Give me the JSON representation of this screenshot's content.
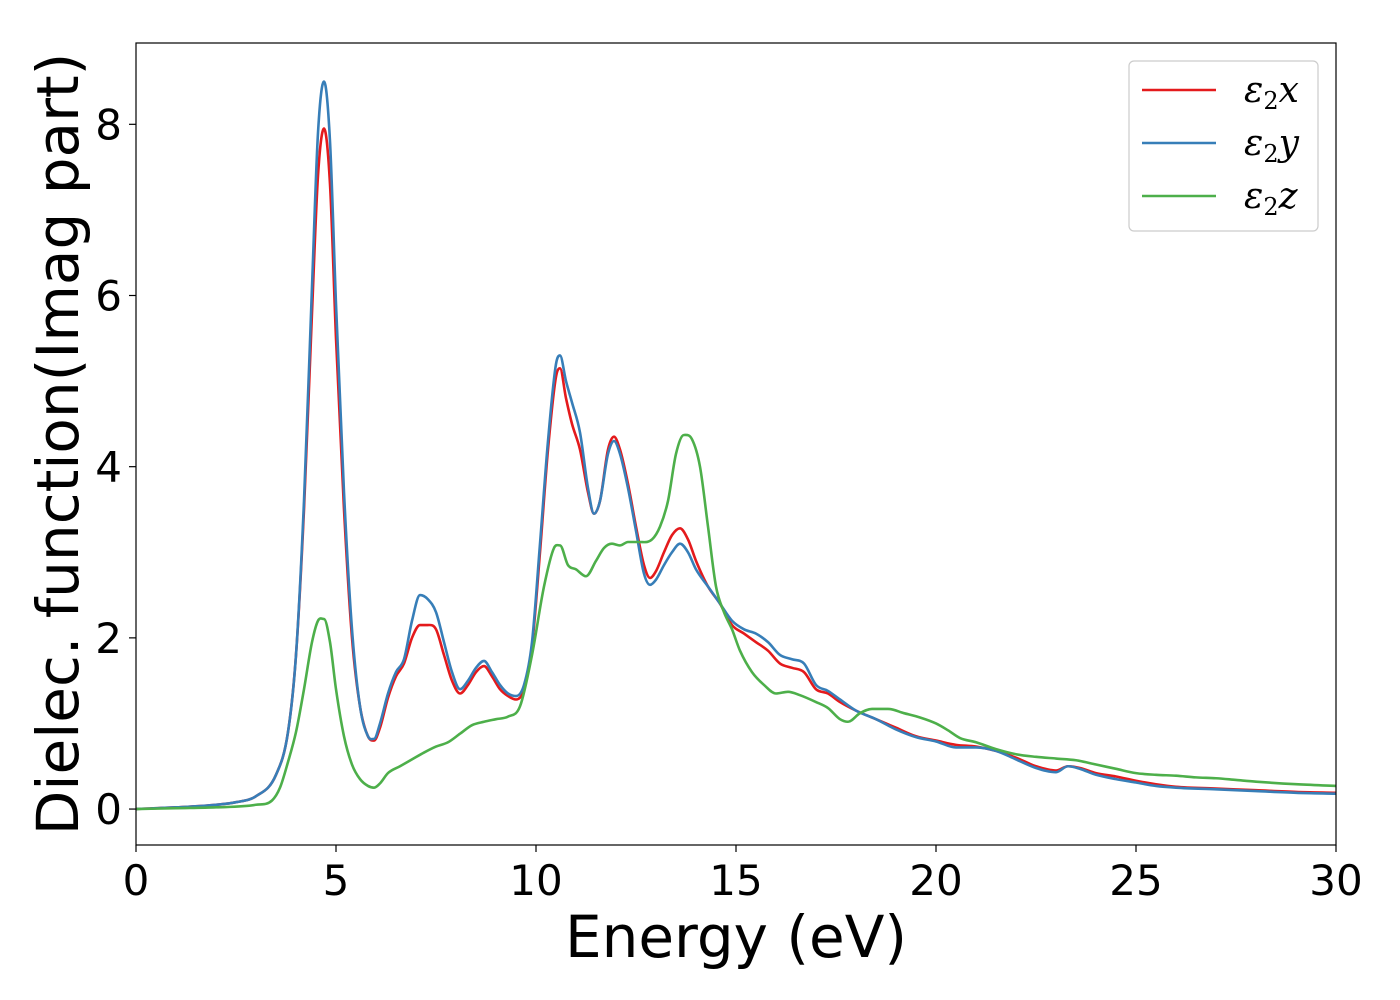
{
  "chart_data": {
    "type": "line",
    "title": "",
    "xlabel": "Energy (eV)",
    "ylabel": "Dielec. function(Imag part)",
    "xlim": [
      0,
      30
    ],
    "ylim": [
      -0.42,
      8.95
    ],
    "xticks": [
      0,
      5,
      10,
      15,
      20,
      25,
      30
    ],
    "yticks": [
      0,
      2,
      4,
      6,
      8
    ],
    "grid": false,
    "legend_position": "top-right",
    "series": [
      {
        "name": "ε₂x",
        "legend": {
          "base": "ε",
          "sub": "2",
          "axis": "x"
        },
        "color": "#e41a1c",
        "points": [
          [
            0,
            0
          ],
          [
            1,
            0.02
          ],
          [
            2,
            0.05
          ],
          [
            2.5,
            0.08
          ],
          [
            3,
            0.15
          ],
          [
            3.5,
            0.4
          ],
          [
            3.8,
            0.9
          ],
          [
            4.0,
            1.8
          ],
          [
            4.2,
            3.5
          ],
          [
            4.4,
            5.8
          ],
          [
            4.55,
            7.4
          ],
          [
            4.7,
            7.95
          ],
          [
            4.85,
            7.3
          ],
          [
            5.0,
            5.5
          ],
          [
            5.2,
            3.5
          ],
          [
            5.4,
            2.0
          ],
          [
            5.6,
            1.2
          ],
          [
            5.8,
            0.85
          ],
          [
            5.95,
            0.8
          ],
          [
            6.1,
            0.95
          ],
          [
            6.3,
            1.3
          ],
          [
            6.5,
            1.55
          ],
          [
            6.7,
            1.7
          ],
          [
            6.9,
            2.0
          ],
          [
            7.1,
            2.15
          ],
          [
            7.3,
            2.15
          ],
          [
            7.5,
            2.1
          ],
          [
            7.7,
            1.8
          ],
          [
            7.9,
            1.5
          ],
          [
            8.1,
            1.35
          ],
          [
            8.3,
            1.45
          ],
          [
            8.5,
            1.6
          ],
          [
            8.7,
            1.67
          ],
          [
            8.9,
            1.55
          ],
          [
            9.1,
            1.4
          ],
          [
            9.3,
            1.32
          ],
          [
            9.5,
            1.28
          ],
          [
            9.7,
            1.4
          ],
          [
            9.9,
            1.9
          ],
          [
            10.1,
            3.0
          ],
          [
            10.3,
            4.2
          ],
          [
            10.5,
            5.05
          ],
          [
            10.6,
            5.15
          ],
          [
            10.75,
            4.8
          ],
          [
            10.9,
            4.5
          ],
          [
            11.1,
            4.2
          ],
          [
            11.3,
            3.7
          ],
          [
            11.45,
            3.45
          ],
          [
            11.6,
            3.6
          ],
          [
            11.8,
            4.2
          ],
          [
            11.95,
            4.35
          ],
          [
            12.1,
            4.2
          ],
          [
            12.3,
            3.8
          ],
          [
            12.5,
            3.3
          ],
          [
            12.7,
            2.85
          ],
          [
            12.85,
            2.7
          ],
          [
            13.0,
            2.78
          ],
          [
            13.2,
            3.0
          ],
          [
            13.4,
            3.2
          ],
          [
            13.6,
            3.28
          ],
          [
            13.8,
            3.15
          ],
          [
            14.0,
            2.9
          ],
          [
            14.3,
            2.6
          ],
          [
            14.6,
            2.4
          ],
          [
            14.9,
            2.15
          ],
          [
            15.2,
            2.05
          ],
          [
            15.5,
            1.95
          ],
          [
            15.8,
            1.85
          ],
          [
            16.1,
            1.7
          ],
          [
            16.4,
            1.65
          ],
          [
            16.7,
            1.6
          ],
          [
            17.0,
            1.4
          ],
          [
            17.3,
            1.35
          ],
          [
            17.6,
            1.25
          ],
          [
            18.0,
            1.15
          ],
          [
            18.5,
            1.05
          ],
          [
            19.0,
            0.95
          ],
          [
            19.5,
            0.85
          ],
          [
            20.0,
            0.8
          ],
          [
            20.5,
            0.75
          ],
          [
            21.0,
            0.73
          ],
          [
            21.5,
            0.68
          ],
          [
            22.0,
            0.6
          ],
          [
            22.5,
            0.5
          ],
          [
            23.0,
            0.45
          ],
          [
            23.3,
            0.5
          ],
          [
            23.6,
            0.48
          ],
          [
            24.0,
            0.42
          ],
          [
            24.5,
            0.38
          ],
          [
            25.0,
            0.33
          ],
          [
            25.5,
            0.29
          ],
          [
            26.0,
            0.26
          ],
          [
            27.0,
            0.24
          ],
          [
            28.0,
            0.22
          ],
          [
            29.0,
            0.2
          ],
          [
            30.0,
            0.19
          ]
        ]
      },
      {
        "name": "ε₂y",
        "legend": {
          "base": "ε",
          "sub": "2",
          "axis": "y"
        },
        "color": "#377eb8",
        "points": [
          [
            0,
            0
          ],
          [
            1,
            0.02
          ],
          [
            2,
            0.05
          ],
          [
            2.5,
            0.08
          ],
          [
            3,
            0.15
          ],
          [
            3.5,
            0.4
          ],
          [
            3.8,
            0.9
          ],
          [
            4.0,
            1.8
          ],
          [
            4.2,
            3.6
          ],
          [
            4.4,
            6.1
          ],
          [
            4.55,
            7.9
          ],
          [
            4.7,
            8.5
          ],
          [
            4.85,
            7.8
          ],
          [
            5.0,
            5.9
          ],
          [
            5.2,
            3.7
          ],
          [
            5.4,
            2.1
          ],
          [
            5.6,
            1.2
          ],
          [
            5.8,
            0.85
          ],
          [
            5.95,
            0.82
          ],
          [
            6.1,
            1.0
          ],
          [
            6.3,
            1.35
          ],
          [
            6.5,
            1.6
          ],
          [
            6.7,
            1.75
          ],
          [
            6.9,
            2.2
          ],
          [
            7.1,
            2.5
          ],
          [
            7.3,
            2.45
          ],
          [
            7.5,
            2.3
          ],
          [
            7.7,
            1.95
          ],
          [
            7.9,
            1.6
          ],
          [
            8.1,
            1.4
          ],
          [
            8.3,
            1.5
          ],
          [
            8.5,
            1.65
          ],
          [
            8.7,
            1.73
          ],
          [
            8.9,
            1.6
          ],
          [
            9.1,
            1.45
          ],
          [
            9.3,
            1.35
          ],
          [
            9.5,
            1.32
          ],
          [
            9.7,
            1.45
          ],
          [
            9.9,
            1.95
          ],
          [
            10.1,
            3.1
          ],
          [
            10.3,
            4.3
          ],
          [
            10.5,
            5.2
          ],
          [
            10.6,
            5.3
          ],
          [
            10.75,
            5.0
          ],
          [
            10.9,
            4.75
          ],
          [
            11.1,
            4.4
          ],
          [
            11.3,
            3.75
          ],
          [
            11.45,
            3.45
          ],
          [
            11.6,
            3.6
          ],
          [
            11.8,
            4.15
          ],
          [
            11.95,
            4.3
          ],
          [
            12.1,
            4.15
          ],
          [
            12.3,
            3.75
          ],
          [
            12.5,
            3.25
          ],
          [
            12.7,
            2.75
          ],
          [
            12.85,
            2.62
          ],
          [
            13.0,
            2.68
          ],
          [
            13.2,
            2.85
          ],
          [
            13.4,
            3.0
          ],
          [
            13.6,
            3.1
          ],
          [
            13.8,
            3.0
          ],
          [
            14.0,
            2.8
          ],
          [
            14.3,
            2.6
          ],
          [
            14.6,
            2.4
          ],
          [
            14.9,
            2.2
          ],
          [
            15.2,
            2.1
          ],
          [
            15.5,
            2.05
          ],
          [
            15.8,
            1.95
          ],
          [
            16.1,
            1.8
          ],
          [
            16.4,
            1.75
          ],
          [
            16.7,
            1.7
          ],
          [
            17.0,
            1.45
          ],
          [
            17.3,
            1.38
          ],
          [
            17.6,
            1.28
          ],
          [
            18.0,
            1.15
          ],
          [
            18.5,
            1.05
          ],
          [
            19.0,
            0.93
          ],
          [
            19.5,
            0.84
          ],
          [
            20.0,
            0.79
          ],
          [
            20.5,
            0.72
          ],
          [
            21.0,
            0.72
          ],
          [
            21.5,
            0.68
          ],
          [
            22.0,
            0.58
          ],
          [
            22.5,
            0.48
          ],
          [
            23.0,
            0.43
          ],
          [
            23.3,
            0.5
          ],
          [
            23.6,
            0.47
          ],
          [
            24.0,
            0.4
          ],
          [
            24.5,
            0.35
          ],
          [
            25.0,
            0.31
          ],
          [
            25.5,
            0.27
          ],
          [
            26.0,
            0.25
          ],
          [
            27.0,
            0.23
          ],
          [
            28.0,
            0.21
          ],
          [
            29.0,
            0.19
          ],
          [
            30.0,
            0.18
          ]
        ]
      },
      {
        "name": "ε₂z",
        "legend": {
          "base": "ε",
          "sub": "2",
          "axis": "z"
        },
        "color": "#4daf4a",
        "points": [
          [
            0,
            0
          ],
          [
            1,
            0.01
          ],
          [
            2,
            0.02
          ],
          [
            3,
            0.05
          ],
          [
            3.4,
            0.1
          ],
          [
            3.6,
            0.25
          ],
          [
            3.8,
            0.55
          ],
          [
            4.0,
            0.9
          ],
          [
            4.2,
            1.4
          ],
          [
            4.4,
            1.95
          ],
          [
            4.55,
            2.2
          ],
          [
            4.7,
            2.22
          ],
          [
            4.85,
            1.95
          ],
          [
            5.0,
            1.4
          ],
          [
            5.2,
            0.85
          ],
          [
            5.4,
            0.52
          ],
          [
            5.6,
            0.35
          ],
          [
            5.8,
            0.27
          ],
          [
            5.95,
            0.25
          ],
          [
            6.1,
            0.3
          ],
          [
            6.3,
            0.42
          ],
          [
            6.6,
            0.5
          ],
          [
            6.9,
            0.58
          ],
          [
            7.2,
            0.66
          ],
          [
            7.5,
            0.73
          ],
          [
            7.8,
            0.78
          ],
          [
            8.1,
            0.88
          ],
          [
            8.4,
            0.98
          ],
          [
            8.7,
            1.02
          ],
          [
            9.0,
            1.05
          ],
          [
            9.3,
            1.08
          ],
          [
            9.6,
            1.2
          ],
          [
            9.9,
            1.8
          ],
          [
            10.2,
            2.6
          ],
          [
            10.45,
            3.05
          ],
          [
            10.6,
            3.08
          ],
          [
            10.8,
            2.85
          ],
          [
            11.0,
            2.8
          ],
          [
            11.25,
            2.72
          ],
          [
            11.5,
            2.9
          ],
          [
            11.7,
            3.05
          ],
          [
            11.9,
            3.1
          ],
          [
            12.1,
            3.08
          ],
          [
            12.3,
            3.12
          ],
          [
            12.6,
            3.12
          ],
          [
            12.9,
            3.15
          ],
          [
            13.1,
            3.3
          ],
          [
            13.3,
            3.6
          ],
          [
            13.5,
            4.15
          ],
          [
            13.7,
            4.37
          ],
          [
            13.9,
            4.32
          ],
          [
            14.1,
            4.0
          ],
          [
            14.3,
            3.3
          ],
          [
            14.5,
            2.6
          ],
          [
            14.7,
            2.3
          ],
          [
            14.9,
            2.1
          ],
          [
            15.1,
            1.85
          ],
          [
            15.4,
            1.6
          ],
          [
            15.7,
            1.45
          ],
          [
            16.0,
            1.35
          ],
          [
            16.3,
            1.37
          ],
          [
            16.6,
            1.33
          ],
          [
            17.0,
            1.25
          ],
          [
            17.3,
            1.18
          ],
          [
            17.6,
            1.05
          ],
          [
            17.8,
            1.02
          ],
          [
            18.1,
            1.12
          ],
          [
            18.4,
            1.17
          ],
          [
            18.8,
            1.17
          ],
          [
            19.2,
            1.12
          ],
          [
            19.6,
            1.07
          ],
          [
            20.0,
            1.0
          ],
          [
            20.3,
            0.92
          ],
          [
            20.6,
            0.83
          ],
          [
            21.0,
            0.78
          ],
          [
            21.5,
            0.7
          ],
          [
            22.0,
            0.64
          ],
          [
            22.5,
            0.61
          ],
          [
            23.0,
            0.59
          ],
          [
            23.5,
            0.57
          ],
          [
            24.0,
            0.52
          ],
          [
            24.5,
            0.47
          ],
          [
            25.0,
            0.42
          ],
          [
            25.5,
            0.4
          ],
          [
            26.0,
            0.39
          ],
          [
            26.5,
            0.37
          ],
          [
            27.0,
            0.36
          ],
          [
            27.5,
            0.34
          ],
          [
            28.0,
            0.32
          ],
          [
            29.0,
            0.29
          ],
          [
            30.0,
            0.27
          ]
        ]
      }
    ]
  }
}
